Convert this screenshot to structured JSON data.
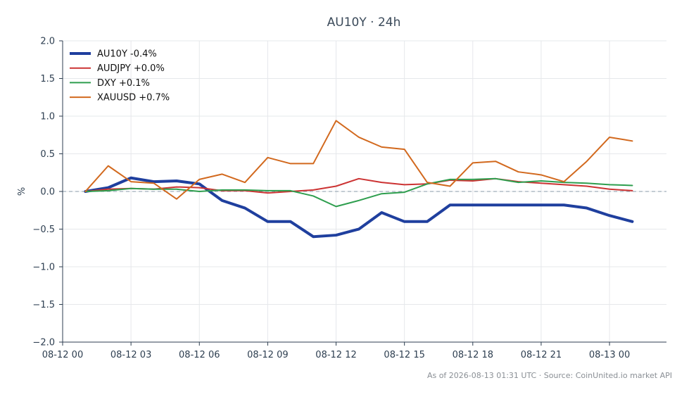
{
  "chart_data": {
    "type": "line",
    "title": "AU10Y · 24h",
    "ylabel": "%",
    "xlabel": "",
    "ylim": [
      -2.0,
      2.0
    ],
    "yticks": [
      "2.0",
      "1.5",
      "1.0",
      "0.5",
      "0.0",
      "−0.5",
      "−1.0",
      "−1.5",
      "−2.0"
    ],
    "ytick_values": [
      2.0,
      1.5,
      1.0,
      0.5,
      0.0,
      -0.5,
      -1.0,
      -1.5,
      -2.0
    ],
    "xlim": [
      0,
      26.5
    ],
    "xticks": [
      "08-12 00",
      "08-12 03",
      "08-12 06",
      "08-12 09",
      "08-12 12",
      "08-12 15",
      "08-12 18",
      "08-12 21",
      "08-13 00"
    ],
    "xtick_values": [
      0,
      3,
      6,
      9,
      12,
      15,
      18,
      21,
      24
    ],
    "grid": true,
    "legend_position": "top-left",
    "baseline": 0.0,
    "x": [
      1,
      2,
      3,
      4,
      5,
      6,
      7,
      8,
      9,
      10,
      11,
      12,
      13,
      14,
      15,
      16,
      17,
      18,
      19,
      20,
      21,
      22,
      23,
      24,
      25
    ],
    "series": [
      {
        "name": "AU10Y -0.4%",
        "color": "#1f3f9e",
        "width": 4,
        "values": [
          0.0,
          0.05,
          0.18,
          0.13,
          0.14,
          0.1,
          -0.12,
          -0.22,
          -0.4,
          -0.4,
          -0.6,
          -0.58,
          -0.5,
          -0.28,
          -0.4,
          -0.4,
          -0.18,
          -0.18,
          -0.18,
          -0.18,
          -0.18,
          -0.18,
          -0.22,
          -0.32,
          -0.4
        ]
      },
      {
        "name": "AUDJPY +0.0%",
        "color": "#cc3333",
        "width": 2,
        "values": [
          0.0,
          0.03,
          0.04,
          0.03,
          0.06,
          0.05,
          0.01,
          0.01,
          -0.02,
          0.0,
          0.02,
          0.07,
          0.17,
          0.12,
          0.09,
          0.1,
          0.15,
          0.14,
          0.17,
          0.13,
          0.11,
          0.09,
          0.07,
          0.03,
          0.01
        ]
      },
      {
        "name": "DXY +0.1%",
        "color": "#2e9e4e",
        "width": 2,
        "values": [
          0.0,
          0.01,
          0.04,
          0.03,
          0.03,
          0.0,
          0.02,
          0.02,
          0.01,
          0.01,
          -0.06,
          -0.2,
          -0.12,
          -0.03,
          -0.01,
          0.1,
          0.16,
          0.16,
          0.17,
          0.12,
          0.14,
          0.12,
          0.11,
          0.09,
          0.08
        ]
      },
      {
        "name": "XAUUSD +0.7%",
        "color": "#d2691e",
        "width": 2,
        "values": [
          0.0,
          0.34,
          0.13,
          0.11,
          -0.1,
          0.16,
          0.23,
          0.12,
          0.45,
          0.37,
          0.37,
          0.94,
          0.72,
          0.59,
          0.56,
          0.12,
          0.07,
          0.38,
          0.4,
          0.26,
          0.22,
          0.13,
          0.4,
          0.72,
          0.67
        ]
      }
    ],
    "footer": "As of 2026-08-13 01:31 UTC · Source: CoinUnited.io market API"
  }
}
